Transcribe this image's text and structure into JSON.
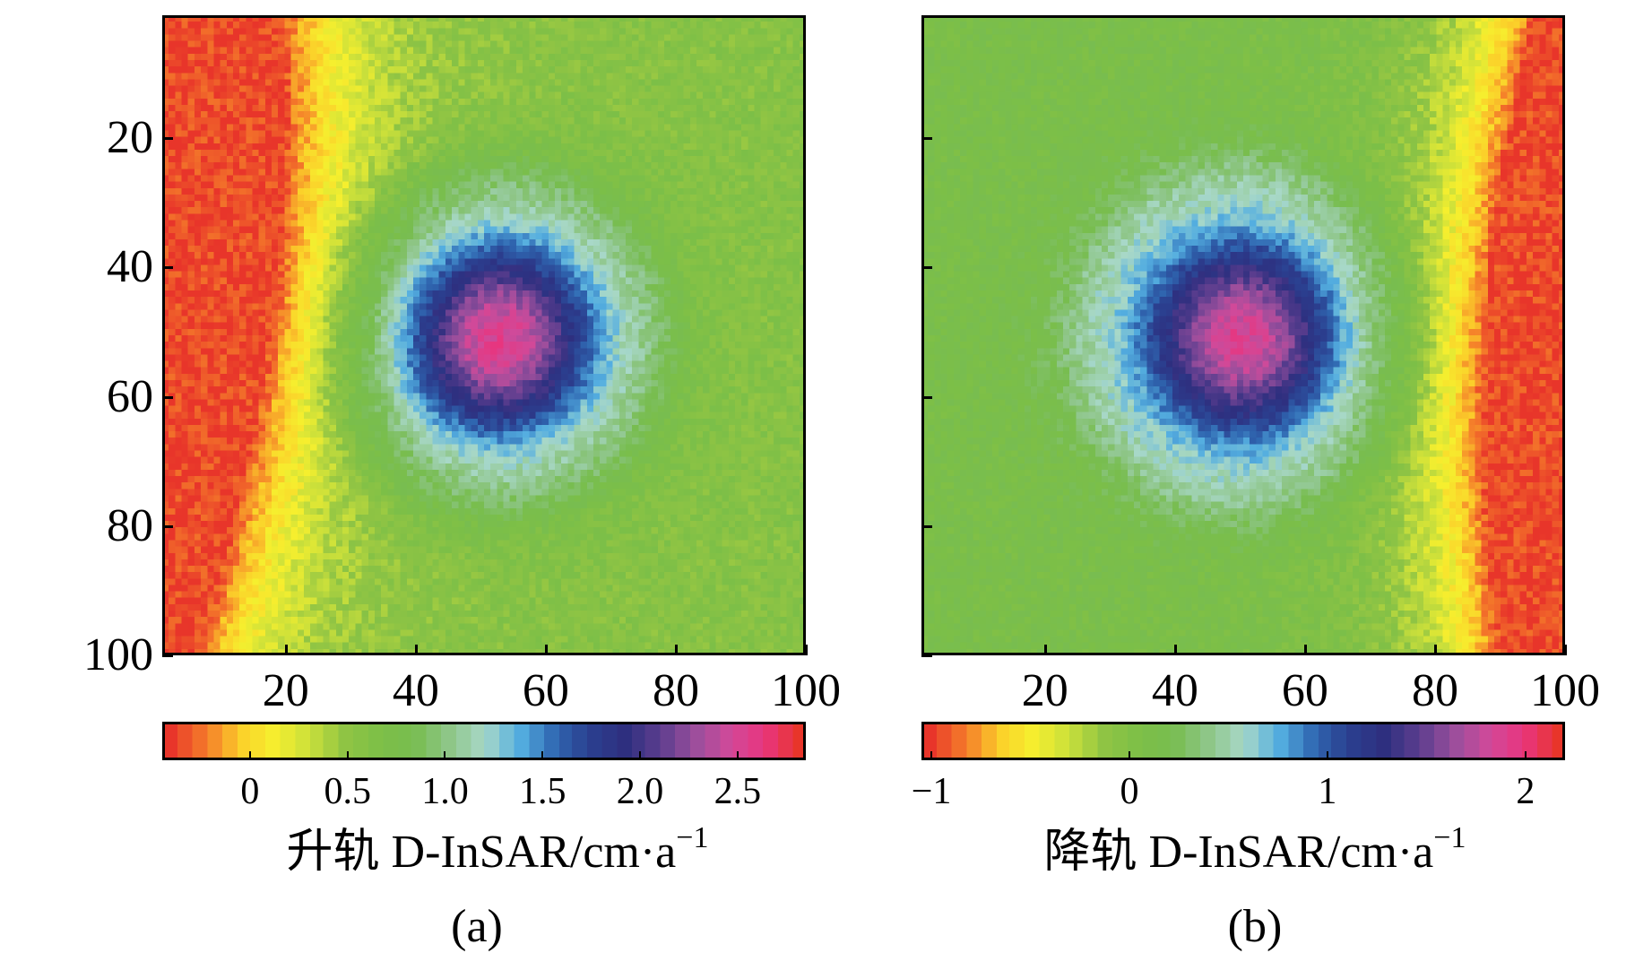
{
  "chart_data": [
    {
      "type": "heatmap",
      "panel_label": "(a)",
      "x_ticks": [
        20,
        40,
        60,
        80,
        100
      ],
      "y_ticks": [
        20,
        40,
        60,
        80,
        100
      ],
      "xlim": [
        1,
        100
      ],
      "ylim": [
        100,
        1
      ],
      "grid_size": [
        100,
        100
      ],
      "colorbar": {
        "title_main": "升轨 D-InSAR/cm·a",
        "title_exp": "−1",
        "ticks": [
          "0",
          "0.5",
          "1.0",
          "1.5",
          "2.0",
          "2.5"
        ],
        "tick_values": [
          0,
          0.5,
          1.0,
          1.5,
          2.0,
          2.5
        ],
        "range": [
          -0.45,
          2.85
        ]
      },
      "field": {
        "center": [
          51,
          50
        ],
        "peak": 2.7,
        "background": 0.55,
        "edge_gradient": "left",
        "edge_value": -0.4
      }
    },
    {
      "type": "heatmap",
      "panel_label": "(b)",
      "x_ticks": [
        20,
        40,
        60,
        80,
        100
      ],
      "y_ticks": [],
      "xlim": [
        1,
        100
      ],
      "ylim": [
        100,
        1
      ],
      "grid_size": [
        100,
        100
      ],
      "colorbar": {
        "title_main": "降轨 D-InSAR/cm·a",
        "title_exp": "−1",
        "ticks": [
          "−1",
          "0",
          "1",
          "2"
        ],
        "tick_values": [
          -1,
          0,
          1,
          2
        ],
        "range": [
          -1.05,
          2.2
        ]
      },
      "field": {
        "center": [
          50,
          50
        ],
        "peak": 2.0,
        "background": 0.1,
        "edge_gradient": "right",
        "edge_value": -1.0
      }
    }
  ],
  "colormap": [
    "#e8352a",
    "#f47a2a",
    "#fbd02a",
    "#f6ef2e",
    "#c9df3b",
    "#8fc444",
    "#7cbf47",
    "#78bd50",
    "#8fc68a",
    "#a8d8c8",
    "#54aee0",
    "#2f66b0",
    "#2b3f8f",
    "#2e2f7f",
    "#5a3d8e",
    "#9a4e9c",
    "#d04a9a",
    "#e8357e",
    "#e8352a"
  ]
}
